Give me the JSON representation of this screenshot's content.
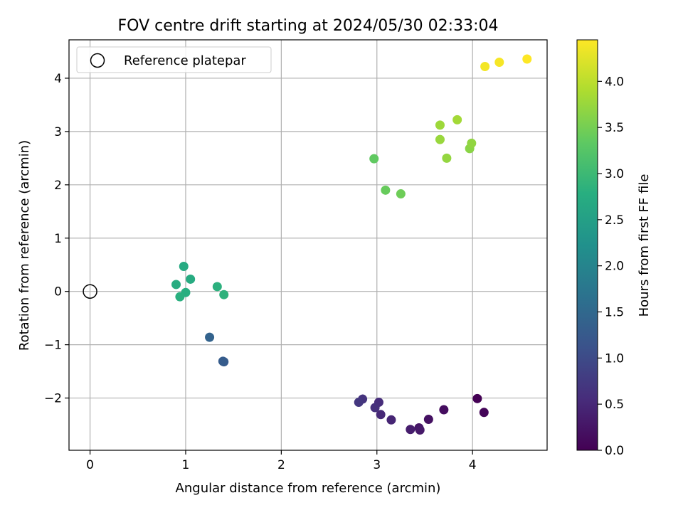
{
  "chart_data": {
    "type": "scatter",
    "title": "FOV centre drift starting at 2024/05/30 02:33:04",
    "xlabel": "Angular distance from reference (arcmin)",
    "ylabel": "Rotation from reference (arcmin)",
    "xlim": [
      -0.22,
      4.78
    ],
    "ylim": [
      -2.98,
      4.72
    ],
    "xticks": [
      0,
      1,
      2,
      3,
      4
    ],
    "yticks": [
      -2,
      -1,
      0,
      1,
      2,
      3,
      4
    ],
    "grid": true,
    "legend": {
      "placement": "top-left",
      "entries": [
        {
          "label": "Reference platepar",
          "marker": "open-circle"
        }
      ]
    },
    "reference_point": {
      "x": 0,
      "y": 0
    },
    "colorbar": {
      "label": "Hours from first FF file",
      "range": [
        0,
        4.45
      ],
      "ticks": [
        0.0,
        0.5,
        1.0,
        1.5,
        2.0,
        2.5,
        3.0,
        3.5,
        4.0
      ],
      "tick_labels": [
        "0.0",
        "0.5",
        "1.0",
        "1.5",
        "2.0",
        "2.5",
        "3.0",
        "3.5",
        "4.0"
      ],
      "colormap": "viridis"
    },
    "points": [
      {
        "x": 4.05,
        "y": -2.01,
        "hours": 0.0
      },
      {
        "x": 4.12,
        "y": -2.27,
        "hours": 0.05
      },
      {
        "x": 3.7,
        "y": -2.22,
        "hours": 0.15
      },
      {
        "x": 3.54,
        "y": -2.4,
        "hours": 0.2
      },
      {
        "x": 3.44,
        "y": -2.56,
        "hours": 0.25
      },
      {
        "x": 3.45,
        "y": -2.6,
        "hours": 0.3
      },
      {
        "x": 3.35,
        "y": -2.59,
        "hours": 0.35
      },
      {
        "x": 3.15,
        "y": -2.41,
        "hours": 0.45
      },
      {
        "x": 3.04,
        "y": -2.31,
        "hours": 0.5
      },
      {
        "x": 3.02,
        "y": -2.08,
        "hours": 0.55
      },
      {
        "x": 2.98,
        "y": -2.18,
        "hours": 0.6
      },
      {
        "x": 2.85,
        "y": -2.02,
        "hours": 0.65
      },
      {
        "x": 2.81,
        "y": -2.08,
        "hours": 0.7
      },
      {
        "x": 1.4,
        "y": -1.32,
        "hours": 1.25
      },
      {
        "x": 1.39,
        "y": -1.31,
        "hours": 1.28
      },
      {
        "x": 1.25,
        "y": -0.86,
        "hours": 1.4
      },
      {
        "x": 0.98,
        "y": 0.47,
        "hours": 2.7
      },
      {
        "x": 1.05,
        "y": 0.23,
        "hours": 2.72
      },
      {
        "x": 0.9,
        "y": 0.13,
        "hours": 2.75
      },
      {
        "x": 1.0,
        "y": -0.02,
        "hours": 2.78
      },
      {
        "x": 0.94,
        "y": -0.1,
        "hours": 2.8
      },
      {
        "x": 1.33,
        "y": 0.09,
        "hours": 2.82
      },
      {
        "x": 1.4,
        "y": -0.06,
        "hours": 2.85
      },
      {
        "x": 2.97,
        "y": 2.49,
        "hours": 3.35
      },
      {
        "x": 3.09,
        "y": 1.9,
        "hours": 3.4
      },
      {
        "x": 3.25,
        "y": 1.83,
        "hours": 3.45
      },
      {
        "x": 3.97,
        "y": 2.68,
        "hours": 3.65
      },
      {
        "x": 3.99,
        "y": 2.78,
        "hours": 3.7
      },
      {
        "x": 3.73,
        "y": 2.5,
        "hours": 3.72
      },
      {
        "x": 3.66,
        "y": 2.85,
        "hours": 3.75
      },
      {
        "x": 3.66,
        "y": 3.12,
        "hours": 3.78
      },
      {
        "x": 3.84,
        "y": 3.22,
        "hours": 3.82
      },
      {
        "x": 4.13,
        "y": 4.22,
        "hours": 4.38
      },
      {
        "x": 4.28,
        "y": 4.3,
        "hours": 4.4
      },
      {
        "x": 4.57,
        "y": 4.36,
        "hours": 4.45
      }
    ]
  }
}
